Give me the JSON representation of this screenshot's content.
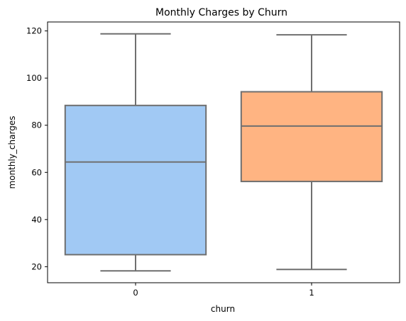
{
  "chart_data": {
    "type": "box",
    "title": "Monthly Charges by Churn",
    "xlabel": "churn",
    "ylabel": "monthly_charges",
    "categories": [
      "0",
      "1"
    ],
    "ylim": [
      13.2,
      123.8
    ],
    "yticks": [
      20,
      40,
      60,
      80,
      100,
      120
    ],
    "grid": false,
    "legend": "none",
    "boxes": [
      {
        "category": "0",
        "whisker_low": 18.25,
        "q1": 25.1,
        "median": 64.4,
        "q3": 88.4,
        "whisker_high": 118.75,
        "color": "#a1c9f4"
      },
      {
        "category": "1",
        "whisker_low": 18.85,
        "q1": 56.15,
        "median": 79.65,
        "q3": 94.2,
        "whisker_high": 118.35,
        "color": "#ffb482"
      }
    ],
    "line_color": "#6f6f6f"
  }
}
